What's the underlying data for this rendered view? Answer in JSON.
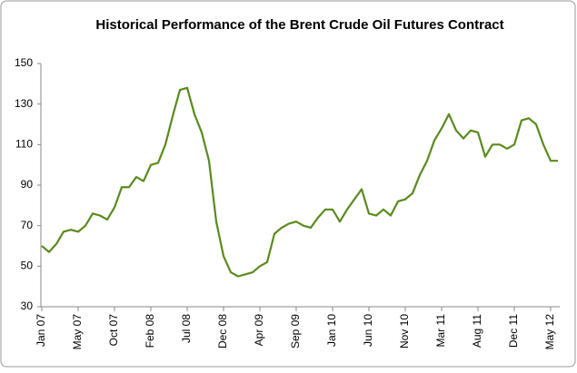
{
  "chart_data": {
    "type": "line",
    "title": "Historical Performance of the Brent Crude Oil Futures Contract",
    "categories": [
      "Jan 07",
      null,
      null,
      null,
      null,
      "May 07",
      null,
      null,
      null,
      null,
      "Oct 07",
      null,
      null,
      null,
      null,
      "Feb 08",
      null,
      null,
      null,
      null,
      "Jul 08",
      null,
      null,
      null,
      null,
      "Dec 08",
      null,
      null,
      null,
      null,
      "Apr 09",
      null,
      null,
      null,
      null,
      "Sep 09",
      null,
      null,
      null,
      null,
      "Jan 10",
      null,
      null,
      null,
      null,
      "Jun 10",
      null,
      null,
      null,
      null,
      "Nov 10",
      null,
      null,
      null,
      null,
      "Mar 11",
      null,
      null,
      null,
      null,
      "Aug 11",
      null,
      null,
      null,
      null,
      "Dec 11",
      null,
      null,
      null,
      null,
      "May 12",
      null
    ],
    "series": [
      {
        "name": "Brent Crude Oil",
        "color": "#5a8a1e",
        "values": [
          60,
          57,
          61,
          67,
          68,
          67,
          70,
          76,
          75,
          73,
          79,
          89,
          89,
          94,
          92,
          100,
          101,
          110,
          124,
          137,
          138,
          125,
          116,
          102,
          72,
          55,
          47,
          45,
          46,
          47,
          50,
          52,
          66,
          69,
          71,
          72,
          70,
          69,
          74,
          78,
          78,
          72,
          78,
          83,
          88,
          76,
          75,
          78,
          75,
          82,
          83,
          86,
          95,
          102,
          112,
          118,
          125,
          117,
          113,
          117,
          116,
          104,
          110,
          110,
          108,
          110,
          122,
          123,
          120,
          110,
          102,
          102
        ]
      }
    ],
    "ylim": [
      30,
      150
    ],
    "yticks": [
      30,
      50,
      70,
      90,
      110,
      130,
      150
    ],
    "grid": false
  }
}
